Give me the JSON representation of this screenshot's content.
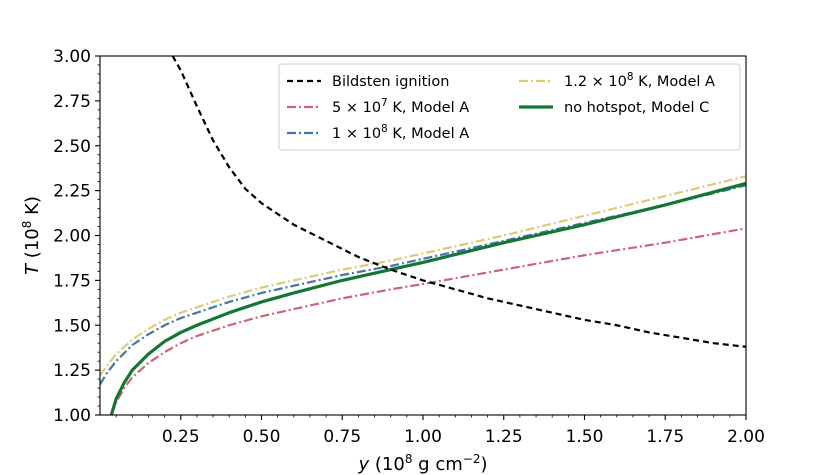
{
  "chart_data": {
    "type": "line",
    "title": "",
    "xlabel": "y (10^8 g cm^-2)",
    "ylabel": "T (10^8 K)",
    "xlim": [
      0.0,
      2.0
    ],
    "ylim": [
      1.0,
      3.0
    ],
    "x_scale": "linear",
    "y_scale": "linear",
    "grid": false,
    "legend_position": "upper right",
    "x_ticks": [
      0.25,
      0.5,
      0.75,
      1.0,
      1.25,
      1.5,
      1.75,
      2.0
    ],
    "x_tick_labels": [
      "0.25",
      "0.50",
      "0.75",
      "1.00",
      "1.25",
      "1.50",
      "1.75",
      "2.00"
    ],
    "y_ticks": [
      1.0,
      1.25,
      1.5,
      1.75,
      2.0,
      2.25,
      2.5,
      2.75,
      3.0
    ],
    "y_tick_labels": [
      "1.00",
      "1.25",
      "1.50",
      "1.75",
      "2.00",
      "2.25",
      "2.50",
      "2.75",
      "3.00"
    ],
    "series": [
      {
        "name": "Bildsten ignition",
        "color": "#000000",
        "style": "dashed",
        "x": [
          0.225,
          0.25,
          0.3,
          0.35,
          0.4,
          0.45,
          0.5,
          0.55,
          0.6,
          0.7,
          0.8,
          0.9,
          1.0,
          1.1,
          1.2,
          1.3,
          1.4,
          1.5,
          1.6,
          1.7,
          1.8,
          1.9,
          2.0
        ],
        "y": [
          3.0,
          2.92,
          2.72,
          2.53,
          2.38,
          2.26,
          2.18,
          2.12,
          2.06,
          1.97,
          1.88,
          1.81,
          1.75,
          1.7,
          1.65,
          1.61,
          1.57,
          1.53,
          1.5,
          1.46,
          1.43,
          1.4,
          1.38
        ]
      },
      {
        "name": "5 × 10^7 K, Model A",
        "color": "#CC6677",
        "style": "dashdot",
        "x": [
          0.035,
          0.05,
          0.075,
          0.1,
          0.15,
          0.2,
          0.25,
          0.3,
          0.4,
          0.5,
          0.6,
          0.75,
          0.9,
          1.0,
          1.25,
          1.5,
          1.75,
          2.0
        ],
        "y": [
          1.0,
          1.07,
          1.15,
          1.21,
          1.29,
          1.35,
          1.4,
          1.44,
          1.5,
          1.55,
          1.59,
          1.65,
          1.7,
          1.73,
          1.81,
          1.89,
          1.96,
          2.04
        ]
      },
      {
        "name": "1 × 10^8 K, Model A",
        "color": "#4477AA",
        "style": "dashdot",
        "x": [
          0.0,
          0.02,
          0.05,
          0.1,
          0.15,
          0.2,
          0.25,
          0.3,
          0.4,
          0.5,
          0.6,
          0.75,
          0.9,
          1.0,
          1.25,
          1.5,
          1.75,
          2.0
        ],
        "y": [
          1.17,
          1.23,
          1.3,
          1.39,
          1.45,
          1.5,
          1.54,
          1.57,
          1.63,
          1.68,
          1.72,
          1.78,
          1.83,
          1.87,
          1.97,
          2.07,
          2.17,
          2.28
        ]
      },
      {
        "name": "1.2 × 10^8 K, Model A",
        "color": "#DDCC77",
        "style": "dashdot",
        "x": [
          0.0,
          0.02,
          0.05,
          0.1,
          0.15,
          0.2,
          0.25,
          0.3,
          0.4,
          0.5,
          0.6,
          0.75,
          0.9,
          1.0,
          1.25,
          1.5,
          1.75,
          2.0
        ],
        "y": [
          1.22,
          1.27,
          1.34,
          1.42,
          1.48,
          1.53,
          1.57,
          1.6,
          1.66,
          1.71,
          1.75,
          1.81,
          1.86,
          1.9,
          2.0,
          2.11,
          2.22,
          2.33
        ]
      },
      {
        "name": "no hotspot, Model C",
        "color": "#117733",
        "style": "solid",
        "x": [
          0.035,
          0.05,
          0.075,
          0.1,
          0.15,
          0.2,
          0.25,
          0.3,
          0.4,
          0.5,
          0.6,
          0.75,
          0.9,
          1.0,
          1.25,
          1.5,
          1.75,
          2.0
        ],
        "y": [
          1.0,
          1.09,
          1.18,
          1.25,
          1.34,
          1.41,
          1.46,
          1.5,
          1.57,
          1.63,
          1.68,
          1.75,
          1.81,
          1.85,
          1.96,
          2.06,
          2.17,
          2.29
        ]
      }
    ]
  }
}
